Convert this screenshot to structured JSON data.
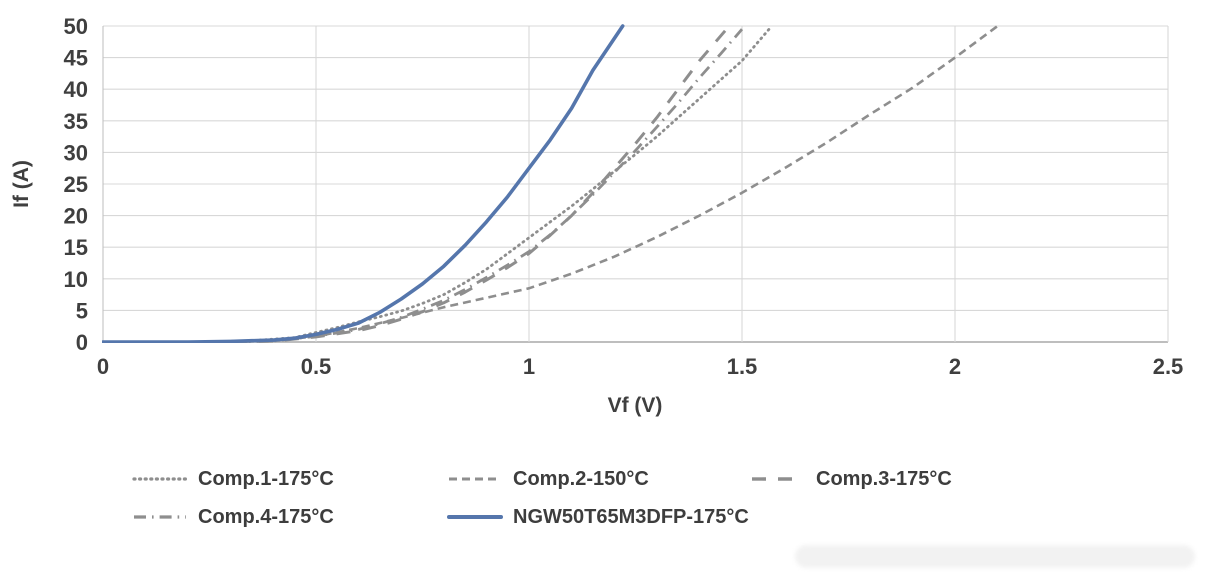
{
  "chart_data": {
    "type": "line",
    "title": "",
    "xlabel": "Vf (V)",
    "ylabel": "If (A)",
    "xlim": [
      0,
      2.5
    ],
    "ylim": [
      0,
      50
    ],
    "xticks": [
      0,
      0.5,
      1,
      1.5,
      2,
      2.5
    ],
    "yticks": [
      0,
      5,
      10,
      15,
      20,
      25,
      30,
      35,
      40,
      45,
      50
    ],
    "grid": true,
    "legend_position": "bottom",
    "colors": {
      "comparison_gray": "#8e8e8e",
      "highlight_blue": "#5576ac",
      "gridline": "#d8d8d8",
      "axis_line": "#a8a8a8",
      "tick_text": "#3f3f3f"
    },
    "series": [
      {
        "name": "Comp.1-175°C",
        "style": "dotted",
        "color": "#8e8e8e",
        "x": [
          0,
          0.25,
          0.35,
          0.45,
          0.5,
          0.55,
          0.6,
          0.65,
          0.7,
          0.75,
          0.8,
          0.85,
          0.9,
          0.95,
          1.0,
          1.05,
          1.1,
          1.15,
          1.2,
          1.25,
          1.3,
          1.35,
          1.4,
          1.45,
          1.5,
          1.57
        ],
        "y": [
          0,
          0,
          0.2,
          0.7,
          1.5,
          2.3,
          3.2,
          4.0,
          4.9,
          6.1,
          7.5,
          9.4,
          11.5,
          14,
          16.5,
          19,
          21.5,
          24.2,
          27,
          29.7,
          32.5,
          35.5,
          38.5,
          41.5,
          44.5,
          50
        ]
      },
      {
        "name": "Comp.2-150°C",
        "style": "dashed",
        "color": "#8e8e8e",
        "x": [
          0,
          0.3,
          0.4,
          0.5,
          0.6,
          0.7,
          0.8,
          0.9,
          1.0,
          1.1,
          1.2,
          1.3,
          1.4,
          1.5,
          1.6,
          1.7,
          1.8,
          1.9,
          2.0,
          2.1
        ],
        "y": [
          0,
          0,
          0.2,
          0.9,
          2.2,
          3.8,
          5.5,
          7.0,
          8.5,
          10.8,
          13.5,
          16.6,
          20,
          23.6,
          27.5,
          31.6,
          36,
          40.2,
          45,
          50
        ]
      },
      {
        "name": "Comp.3-175°C",
        "style": "longdash",
        "color": "#8e8e8e",
        "x": [
          0,
          0.3,
          0.4,
          0.5,
          0.6,
          0.65,
          0.7,
          0.75,
          0.8,
          0.85,
          0.9,
          0.95,
          1.0,
          1.05,
          1.1,
          1.15,
          1.2,
          1.25,
          1.3,
          1.35,
          1.4,
          1.47
        ],
        "y": [
          0,
          0,
          0.15,
          0.8,
          1.8,
          2.6,
          3.6,
          4.8,
          6.2,
          7.9,
          9.8,
          11.8,
          14,
          16.9,
          20,
          23.6,
          27.5,
          31.4,
          35.5,
          40,
          44.5,
          50
        ]
      },
      {
        "name": "Comp.4-175°C",
        "style": "dashdot",
        "color": "#8e8e8e",
        "x": [
          0,
          0.3,
          0.4,
          0.5,
          0.6,
          0.65,
          0.7,
          0.75,
          0.8,
          0.85,
          0.9,
          0.95,
          1.0,
          1.05,
          1.1,
          1.15,
          1.2,
          1.25,
          1.3,
          1.35,
          1.4,
          1.45,
          1.5
        ],
        "y": [
          0,
          0,
          0.15,
          0.9,
          2.0,
          2.9,
          3.9,
          5.2,
          6.6,
          8.3,
          10.2,
          12.2,
          14.3,
          17,
          20,
          23.3,
          26.8,
          30.3,
          34,
          37.8,
          41.8,
          45.6,
          49.5
        ]
      },
      {
        "name": "NGW50T65M3DFP-175°C",
        "style": "solid",
        "color": "#5576ac",
        "x": [
          0,
          0.2,
          0.3,
          0.35,
          0.4,
          0.45,
          0.5,
          0.55,
          0.6,
          0.65,
          0.7,
          0.75,
          0.8,
          0.85,
          0.9,
          0.95,
          1.0,
          1.05,
          1.1,
          1.15,
          1.22
        ],
        "y": [
          0,
          0,
          0.1,
          0.2,
          0.3,
          0.6,
          1.2,
          2.0,
          3.0,
          4.7,
          6.8,
          9.2,
          12,
          15.3,
          19,
          23,
          27.5,
          32,
          37,
          43,
          50
        ]
      }
    ]
  }
}
